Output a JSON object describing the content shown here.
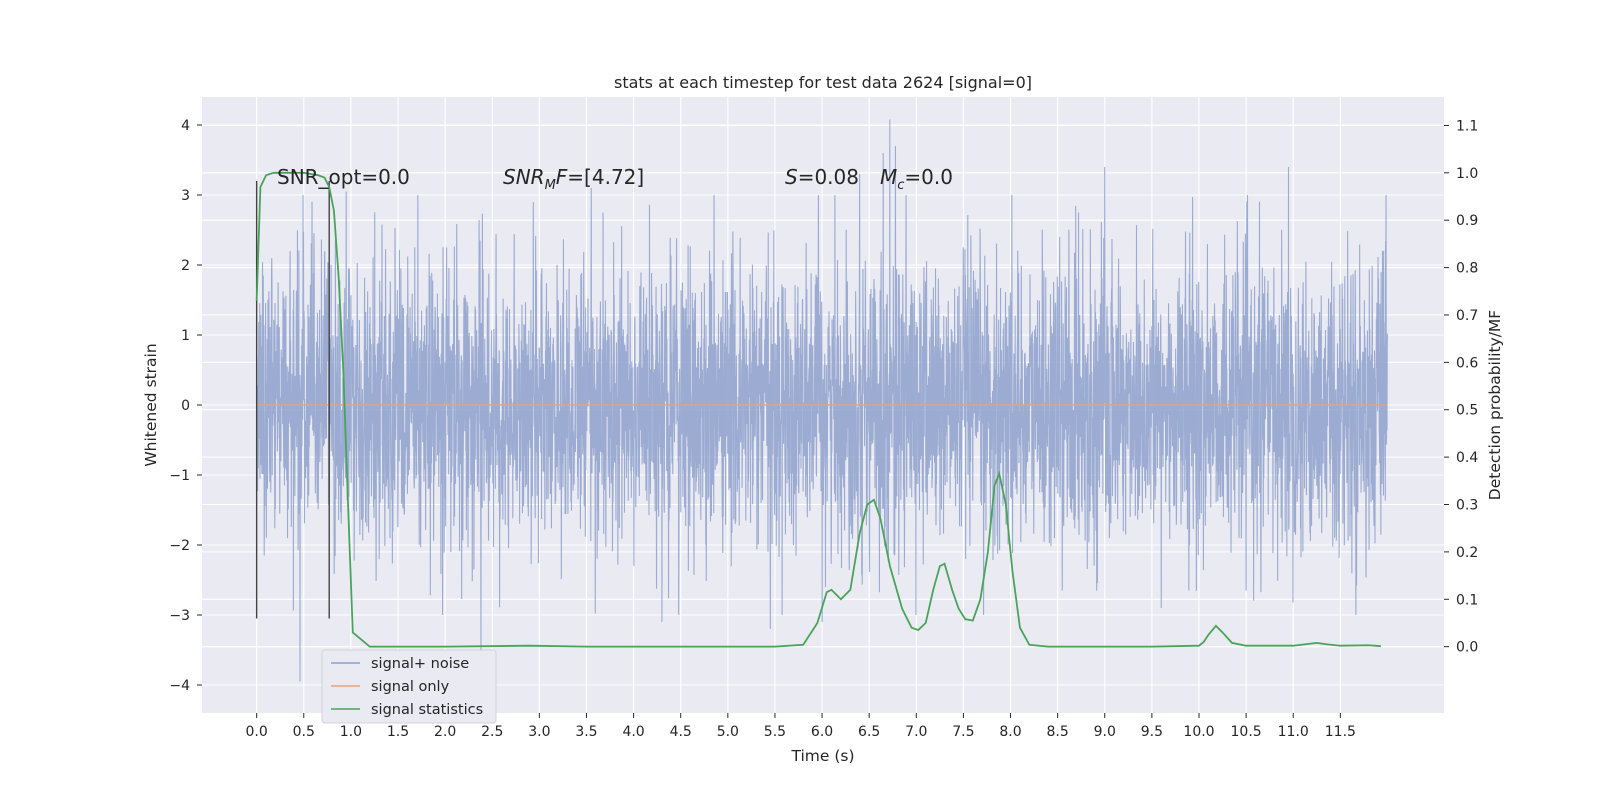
{
  "chart_data": {
    "type": "line",
    "title": "stats at each timestep for test data 2624 [signal=0]",
    "xlabel": "Time (s)",
    "ylabel": "Whitened strain",
    "y2label": "Detection probability/MF",
    "xlim": [
      -0.58,
      12.6
    ],
    "ylim": [
      -4.4,
      4.4
    ],
    "y2lim": [
      -0.14,
      1.16
    ],
    "x_ticks": [
      "0.0",
      "0.5",
      "1.0",
      "1.5",
      "2.0",
      "2.5",
      "3.0",
      "3.5",
      "4.0",
      "4.5",
      "5.0",
      "5.5",
      "6.0",
      "6.5",
      "7.0",
      "7.5",
      "8.0",
      "8.5",
      "9.0",
      "9.5",
      "10.0",
      "10.5",
      "11.0",
      "11.5"
    ],
    "y_ticks": [
      "4",
      "3",
      "2",
      "1",
      "0",
      "−1",
      "−2",
      "−3",
      "−4"
    ],
    "y2_ticks": [
      "1.1",
      "1.0",
      "0.9",
      "0.8",
      "0.7",
      "0.6",
      "0.5",
      "0.4",
      "0.3",
      "0.2",
      "0.1",
      "0.0"
    ],
    "grid": true,
    "legend_position": "lower-left",
    "annotations": {
      "snr_opt": "SNR_opt=0.0",
      "snr_mf": "=[4.72]",
      "snr_mf_math": "SNR",
      "snr_mf_sub": "M",
      "snr_mf_tail": "F",
      "s_label": "=0.08",
      "s_math": "S",
      "mc_label": "=0.0",
      "mc_math": "M",
      "mc_sub": "c"
    },
    "markers_x": [
      0.0,
      0.77
    ],
    "series": [
      {
        "name": "signal+ noise",
        "color": "#8da0cb",
        "x_range": [
          0.0,
          12.0
        ],
        "envelope_sigma": 1.0,
        "spikes": [
          {
            "x": 0.46,
            "y": -3.95
          },
          {
            "x": 2.38,
            "y": -3.5
          },
          {
            "x": 6.72,
            "y": 4.08
          },
          {
            "x": 6.65,
            "y": 3.6
          },
          {
            "x": 6.78,
            "y": 3.7
          },
          {
            "x": 6.4,
            "y": 3.3
          },
          {
            "x": 10.95,
            "y": 3.4
          },
          {
            "x": 9.0,
            "y": 3.4
          },
          {
            "x": 3.55,
            "y": 3.1
          },
          {
            "x": 5.45,
            "y": -3.2
          },
          {
            "x": 4.3,
            "y": -3.1
          },
          {
            "x": 6.0,
            "y": -3.1
          },
          {
            "x": 9.6,
            "y": -2.9
          },
          {
            "x": 0.95,
            "y": 3.05
          }
        ]
      },
      {
        "name": "signal only",
        "color": "#e8a27f",
        "x": [
          0.0,
          12.0
        ],
        "y": [
          0.0,
          0.0
        ]
      },
      {
        "name": "signal statistics",
        "color": "#4aa35a",
        "axis": "right",
        "x": [
          0.0,
          0.04,
          0.1,
          0.18,
          0.3,
          0.5,
          0.65,
          0.72,
          0.77,
          0.82,
          0.87,
          0.92,
          0.97,
          1.02,
          1.2,
          2.0,
          2.9,
          3.5,
          4.5,
          5.5,
          5.8,
          5.95,
          6.05,
          6.1,
          6.2,
          6.3,
          6.4,
          6.48,
          6.55,
          6.62,
          6.72,
          6.85,
          6.95,
          7.02,
          7.1,
          7.18,
          7.25,
          7.3,
          7.38,
          7.45,
          7.52,
          7.6,
          7.68,
          7.76,
          7.83,
          7.88,
          7.95,
          8.02,
          8.1,
          8.2,
          8.4,
          9.0,
          9.5,
          10.0,
          10.05,
          10.1,
          10.18,
          10.25,
          10.35,
          10.5,
          11.0,
          11.25,
          11.35,
          11.5,
          11.8,
          11.93
        ],
        "y": [
          0.73,
          0.97,
          0.995,
          1.0,
          1.0,
          1.0,
          0.995,
          0.99,
          0.97,
          0.92,
          0.78,
          0.58,
          0.3,
          0.03,
          0.0,
          0.0,
          0.002,
          0.0,
          0.0,
          0.0,
          0.004,
          0.05,
          0.115,
          0.12,
          0.1,
          0.12,
          0.24,
          0.3,
          0.31,
          0.27,
          0.17,
          0.08,
          0.04,
          0.035,
          0.05,
          0.12,
          0.17,
          0.175,
          0.12,
          0.08,
          0.058,
          0.055,
          0.1,
          0.2,
          0.34,
          0.365,
          0.3,
          0.16,
          0.04,
          0.004,
          0.0,
          0.0,
          0.0,
          0.002,
          0.01,
          0.025,
          0.044,
          0.03,
          0.008,
          0.002,
          0.002,
          0.008,
          0.005,
          0.002,
          0.003,
          0.001
        ]
      }
    ]
  }
}
